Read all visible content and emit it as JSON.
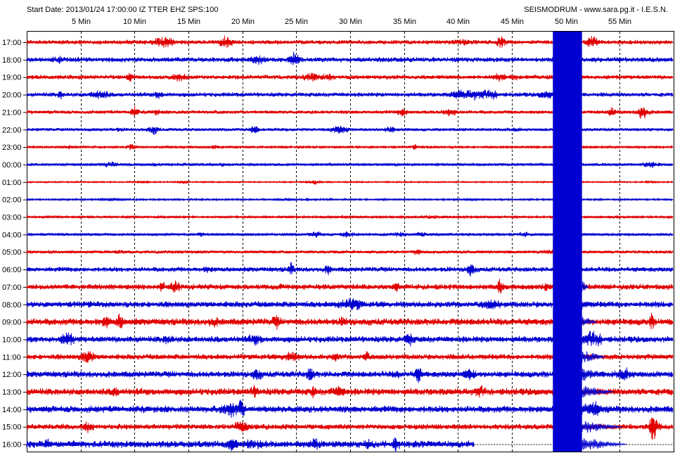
{
  "header": {
    "start_info": "Start Date: 2013/01/24 17:00:00 IZ TTER EHZ SPS:100",
    "credit": "SEISMODRUM - www.sara.pg.it - I.E.S.N."
  },
  "colors": {
    "odd_row": "#e00000",
    "even_row": "#0000d0",
    "background": "#ffffff",
    "axis": "#000000"
  },
  "chart_data": {
    "type": "line",
    "title": "",
    "xlabel": "",
    "ylabel": "",
    "grid": true,
    "xlim": [
      0,
      60
    ],
    "x_unit": "min",
    "x_ticks": [
      {
        "value": 5,
        "label": "5 Min"
      },
      {
        "value": 10,
        "label": "10 Min"
      },
      {
        "value": 15,
        "label": "15 Min"
      },
      {
        "value": 20,
        "label": "20 Min"
      },
      {
        "value": 25,
        "label": "25 Min"
      },
      {
        "value": 30,
        "label": "30 Min"
      },
      {
        "value": 35,
        "label": "35 Min"
      },
      {
        "value": 40,
        "label": "40 Min"
      },
      {
        "value": 45,
        "label": "45 Min"
      },
      {
        "value": 50,
        "label": "50 Min"
      },
      {
        "value": 55,
        "label": "55 Min"
      }
    ],
    "rows": [
      {
        "label": "17:00",
        "color": "red",
        "amplitude": 3.5
      },
      {
        "label": "18:00",
        "color": "blue",
        "amplitude": 4
      },
      {
        "label": "19:00",
        "color": "red",
        "amplitude": 3.5
      },
      {
        "label": "20:00",
        "color": "blue",
        "amplitude": 3.5
      },
      {
        "label": "21:00",
        "color": "red",
        "amplitude": 3
      },
      {
        "label": "22:00",
        "color": "blue",
        "amplitude": 2.5
      },
      {
        "label": "23:00",
        "color": "red",
        "amplitude": 1.5
      },
      {
        "label": "00:00",
        "color": "blue",
        "amplitude": 2
      },
      {
        "label": "01:00",
        "color": "red",
        "amplitude": 1
      },
      {
        "label": "02:00",
        "color": "blue",
        "amplitude": 1.2
      },
      {
        "label": "03:00",
        "color": "red",
        "amplitude": 1.5
      },
      {
        "label": "04:00",
        "color": "blue",
        "amplitude": 2
      },
      {
        "label": "05:00",
        "color": "red",
        "amplitude": 2.5
      },
      {
        "label": "06:00",
        "color": "blue",
        "amplitude": 4
      },
      {
        "label": "07:00",
        "color": "red",
        "amplitude": 4.5
      },
      {
        "label": "08:00",
        "color": "blue",
        "amplitude": 5
      },
      {
        "label": "09:00",
        "color": "red",
        "amplitude": 5.5
      },
      {
        "label": "10:00",
        "color": "blue",
        "amplitude": 5
      },
      {
        "label": "11:00",
        "color": "red",
        "amplitude": 4.5
      },
      {
        "label": "12:00",
        "color": "blue",
        "amplitude": 5
      },
      {
        "label": "13:00",
        "color": "red",
        "amplitude": 5.5
      },
      {
        "label": "14:00",
        "color": "blue",
        "amplitude": 5.5
      },
      {
        "label": "15:00",
        "color": "red",
        "amplitude": 4.5
      },
      {
        "label": "16:00",
        "color": "blue",
        "amplitude": 5.5
      }
    ],
    "events": [
      {
        "row": "17:00",
        "start_min": 48.8,
        "end_min": 51.5,
        "peak_amplitude": "full-scale",
        "color": "blue"
      }
    ],
    "recording_ends_at": {
      "row": "16:00",
      "minute": 41.5
    }
  }
}
